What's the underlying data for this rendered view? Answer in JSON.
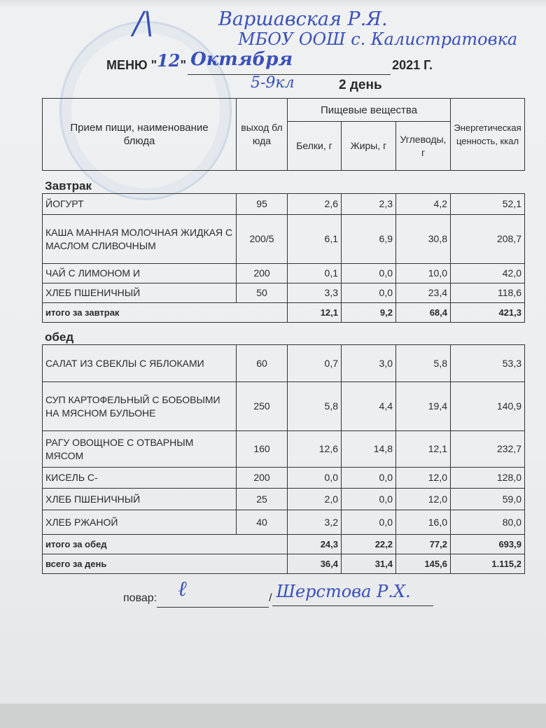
{
  "handwriting": {
    "approver_name": "Варшавская Р.Я.",
    "school": "МБОУ ООШ с. Калистратовка",
    "date_day": "12",
    "date_month": "Октября",
    "grades": "5-9кл",
    "cook_name": "Шерстова Р.Х."
  },
  "header": {
    "menu_label": "МЕНЮ \"",
    "menu_quote_close": "\"",
    "year": "2021 Г.",
    "day_label": "2 день"
  },
  "columns": {
    "dish": "Прием пищи, наименование блюда",
    "yield": "выход блюда",
    "nutrients": "Пищевые вещества",
    "protein": "Белки, г",
    "fat": "Жиры, г",
    "carbs": "Углеводы, г",
    "energy": "Энергетическая ценность, ккал"
  },
  "breakfast": {
    "label": "Завтрак",
    "rows": [
      {
        "name": "ЙОГУРТ",
        "yield": "95",
        "protein": "2,6",
        "fat": "2,3",
        "carbs": "4,2",
        "energy": "52,1"
      },
      {
        "name": "КАША МАННАЯ МОЛОЧНАЯ ЖИДКАЯ С МАСЛОМ СЛИВОЧНЫМ",
        "yield": "200/5",
        "protein": "6,1",
        "fat": "6,9",
        "carbs": "30,8",
        "energy": "208,7"
      },
      {
        "name": "ЧАЙ С ЛИМОНОМ И",
        "yield": "200",
        "protein": "0,1",
        "fat": "0,0",
        "carbs": "10,0",
        "energy": "42,0"
      },
      {
        "name": "ХЛЕБ ПШЕНИЧНЫЙ",
        "yield": "50",
        "protein": "3,3",
        "fat": "0,0",
        "carbs": "23,4",
        "energy": "118,6"
      }
    ],
    "total": {
      "label": "итого за завтрак",
      "protein": "12,1",
      "fat": "9,2",
      "carbs": "68,4",
      "energy": "421,3"
    }
  },
  "lunch": {
    "label": "обед",
    "rows": [
      {
        "name": "САЛАТ ИЗ СВЕКЛЫ  С ЯБЛОКАМИ",
        "yield": "60",
        "protein": "0,7",
        "fat": "3,0",
        "carbs": "5,8",
        "energy": "53,3"
      },
      {
        "name": "СУП КАРТОФЕЛЬНЫЙ С БОБОВЫМИ НА МЯСНОМ БУЛЬОНЕ",
        "yield": "250",
        "protein": "5,8",
        "fat": "4,4",
        "carbs": "19,4",
        "energy": "140,9"
      },
      {
        "name": "РАГУ ОВОЩНОЕ С ОТВАРНЫМ  МЯСОМ",
        "yield": "160",
        "protein": "12,6",
        "fat": "14,8",
        "carbs": "12,1",
        "energy": "232,7"
      },
      {
        "name": "КИСЕЛЬ С-",
        "yield": "200",
        "protein": "0,0",
        "fat": "0,0",
        "carbs": "12,0",
        "energy": "128,0"
      },
      {
        "name": "ХЛЕБ ПШЕНИЧНЫЙ",
        "yield": "25",
        "protein": "2,0",
        "fat": "0,0",
        "carbs": "12,0",
        "energy": "59,0"
      },
      {
        "name": "ХЛЕБ РЖАНОЙ",
        "yield": "40",
        "protein": "3,2",
        "fat": "0,0",
        "carbs": "16,0",
        "energy": "80,0"
      }
    ],
    "total": {
      "label": "итого за обед",
      "protein": "24,3",
      "fat": "22,2",
      "carbs": "77,2",
      "energy": "693,9"
    }
  },
  "day_total": {
    "label": "всего за день",
    "protein": "36,4",
    "fat": "31,4",
    "carbs": "145,6",
    "energy": "1.115,2"
  },
  "footer": {
    "cook_label": "повар:",
    "separator": "/"
  }
}
